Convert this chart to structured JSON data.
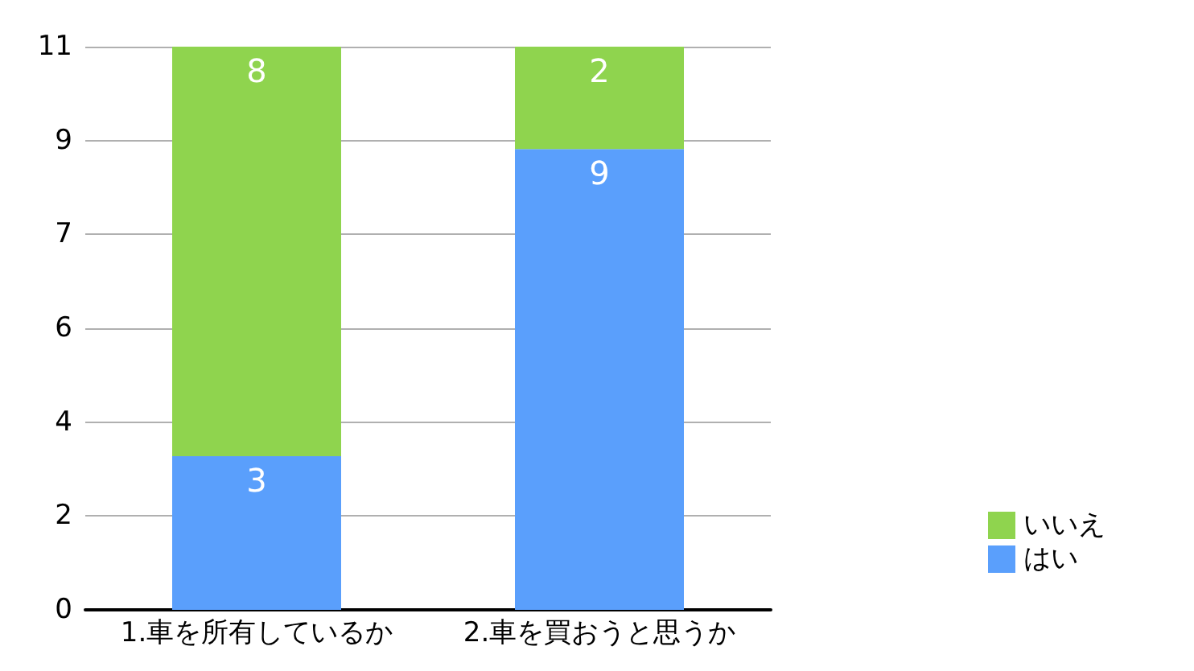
{
  "chart_data": {
    "type": "bar",
    "stacked": true,
    "categories": [
      "1.車を所有しているか",
      "2.車を買おうと思うか"
    ],
    "series": [
      {
        "name": "はい",
        "color": "#5a9ffc",
        "values": [
          3,
          9
        ]
      },
      {
        "name": "いいえ",
        "color": "#8fd44e",
        "values": [
          8,
          2
        ]
      }
    ],
    "ylim": [
      0,
      11
    ],
    "yticks": [
      0,
      {
        "value": 1.833,
        "label": "2"
      },
      {
        "value": 3.667,
        "label": "4"
      },
      {
        "value": 5.5,
        "label": "6"
      },
      {
        "value": 7.333,
        "label": "7"
      },
      {
        "value": 9.167,
        "label": "9"
      },
      11
    ],
    "grid": "y",
    "legend": "right",
    "data_labels": true
  }
}
